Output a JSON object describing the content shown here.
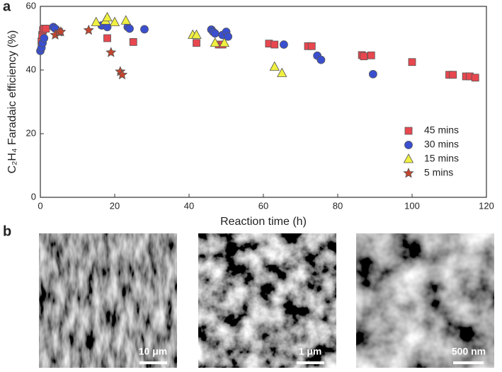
{
  "panel_labels": [
    "a",
    "b"
  ],
  "chart_data": {
    "type": "scatter",
    "xlabel": "Reaction time (h)",
    "ylabel": "C₂H₄ Faradaic efficiency (%)",
    "xlim": [
      0,
      120
    ],
    "xticks": [
      0,
      20,
      40,
      60,
      80,
      100,
      120
    ],
    "ylim": [
      0,
      60
    ],
    "yticks": [
      0,
      20,
      40,
      60
    ],
    "legend": "right",
    "series": [
      {
        "name": "45 mins",
        "color": "#e8474f",
        "marker": "square",
        "x": [
          0.3,
          0.5,
          0.7,
          1,
          1.5,
          5,
          18,
          25,
          42,
          48,
          49,
          61.5,
          63,
          72,
          73,
          86.5,
          87,
          89,
          100,
          110,
          111,
          114.5,
          115.5,
          117
        ],
        "values": [
          49,
          51,
          52.5,
          53,
          53,
          52,
          50,
          48.8,
          48.5,
          48,
          48,
          48.3,
          48,
          47.5,
          47.5,
          44.7,
          44.3,
          44.6,
          42.5,
          38.5,
          38.5,
          38,
          38,
          37.6
        ]
      },
      {
        "name": "30 mins",
        "color": "#3a4fcf",
        "marker": "circle",
        "x": [
          0,
          0.3,
          0.6,
          1,
          3.5,
          4,
          16.5,
          18,
          23.5,
          24,
          28,
          46,
          46.5,
          47,
          49,
          50,
          50.5,
          65.5,
          74.5,
          75.5,
          89.5
        ],
        "values": [
          46,
          47,
          48.5,
          50,
          53.5,
          53,
          54,
          53.5,
          53.5,
          53,
          52.8,
          52.7,
          52,
          51.5,
          51,
          52,
          50.5,
          48,
          44.5,
          43.2,
          38.7
        ]
      },
      {
        "name": "15 mins",
        "color": "#f0f040",
        "marker": "triangle",
        "x": [
          15,
          17.5,
          18,
          20,
          23,
          41,
          42,
          47,
          49.5,
          63,
          65
        ],
        "values": [
          55,
          55.5,
          56.5,
          55,
          55.5,
          51,
          51,
          48.5,
          48.5,
          41,
          39
        ]
      },
      {
        "name": "5 mins",
        "color": "#c4452e",
        "marker": "star",
        "x": [
          4,
          5,
          5.5,
          13,
          19,
          21.5,
          22
        ],
        "values": [
          51,
          52,
          52,
          52.5,
          45.5,
          39.5,
          38.5
        ]
      }
    ]
  },
  "images": [
    {
      "scale_bar": "10 μm"
    },
    {
      "scale_bar": "1 μm"
    },
    {
      "scale_bar": "500 nm"
    }
  ]
}
